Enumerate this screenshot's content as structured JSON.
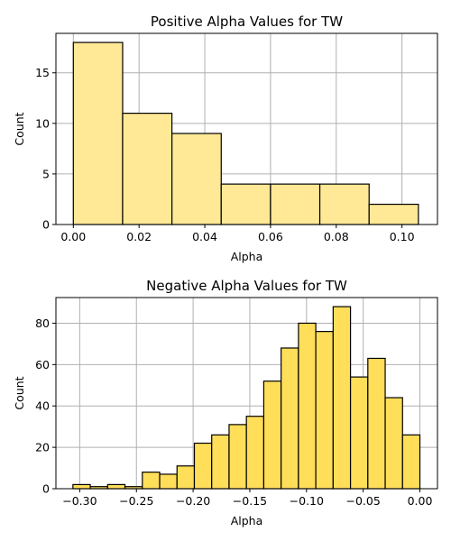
{
  "colors": {
    "top_bar_fill": "#FFE896",
    "bottom_bar_fill": "#FFDE59",
    "bar_edge": "#000000",
    "grid": "#b0b0b0"
  },
  "chart_data": [
    {
      "type": "bar",
      "title": "Positive Alpha Values for TW",
      "xlabel": "Alpha",
      "ylabel": "Count",
      "xlim": [
        -0.0053,
        0.1108
      ],
      "ylim": [
        0,
        18.9
      ],
      "xticks": [
        0.0,
        0.02,
        0.04,
        0.06,
        0.08,
        0.1
      ],
      "xtick_labels": [
        "0.00",
        "0.02",
        "0.04",
        "0.06",
        "0.08",
        "0.10"
      ],
      "yticks": [
        0,
        5,
        10,
        15
      ],
      "ytick_labels": [
        "0",
        "5",
        "10",
        "15"
      ],
      "grid": true,
      "bins": [
        {
          "start": 0.0,
          "end": 0.015,
          "count": 18
        },
        {
          "start": 0.015,
          "end": 0.03,
          "count": 11
        },
        {
          "start": 0.03,
          "end": 0.045,
          "count": 9
        },
        {
          "start": 0.045,
          "end": 0.06,
          "count": 4
        },
        {
          "start": 0.06,
          "end": 0.075,
          "count": 4
        },
        {
          "start": 0.075,
          "end": 0.09,
          "count": 4
        },
        {
          "start": 0.09,
          "end": 0.105,
          "count": 2
        }
      ]
    },
    {
      "type": "bar",
      "title": "Negative Alpha Values for TW",
      "xlabel": "Alpha",
      "ylabel": "Count",
      "xlim": [
        -0.321,
        0.0155
      ],
      "ylim": [
        0,
        92.4
      ],
      "xticks": [
        -0.3,
        -0.25,
        -0.2,
        -0.15,
        -0.1,
        -0.05,
        0.0
      ],
      "xtick_labels": [
        "−0.30",
        "−0.25",
        "−0.20",
        "−0.15",
        "−0.10",
        "−0.05",
        "0.00"
      ],
      "yticks": [
        0,
        20,
        40,
        60,
        80
      ],
      "ytick_labels": [
        "0",
        "20",
        "40",
        "60",
        "80"
      ],
      "grid": true,
      "bins": [
        {
          "start": -0.306,
          "end": -0.2907,
          "count": 2
        },
        {
          "start": -0.2907,
          "end": -0.2754,
          "count": 1
        },
        {
          "start": -0.2754,
          "end": -0.2601,
          "count": 2
        },
        {
          "start": -0.2601,
          "end": -0.2448,
          "count": 1
        },
        {
          "start": -0.2448,
          "end": -0.2295,
          "count": 8
        },
        {
          "start": -0.2295,
          "end": -0.2142,
          "count": 7
        },
        {
          "start": -0.2142,
          "end": -0.1989,
          "count": 11
        },
        {
          "start": -0.1989,
          "end": -0.1836,
          "count": 22
        },
        {
          "start": -0.1836,
          "end": -0.1683,
          "count": 26
        },
        {
          "start": -0.1683,
          "end": -0.153,
          "count": 31
        },
        {
          "start": -0.153,
          "end": -0.1377,
          "count": 35
        },
        {
          "start": -0.1377,
          "end": -0.1224,
          "count": 52
        },
        {
          "start": -0.1224,
          "end": -0.1071,
          "count": 68
        },
        {
          "start": -0.1071,
          "end": -0.0918,
          "count": 80
        },
        {
          "start": -0.0918,
          "end": -0.0765,
          "count": 76
        },
        {
          "start": -0.0765,
          "end": -0.0612,
          "count": 88
        },
        {
          "start": -0.0612,
          "end": -0.0459,
          "count": 54
        },
        {
          "start": -0.0459,
          "end": -0.0306,
          "count": 63
        },
        {
          "start": -0.0306,
          "end": -0.0153,
          "count": 44
        },
        {
          "start": -0.0153,
          "end": 0.0,
          "count": 26
        }
      ]
    }
  ]
}
